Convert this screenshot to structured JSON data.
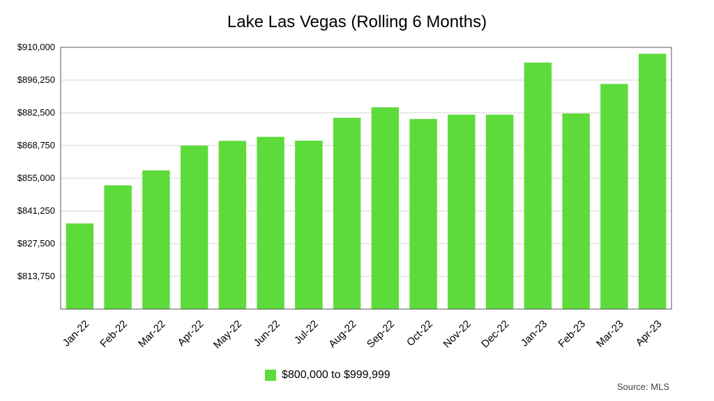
{
  "chart_data": {
    "type": "bar",
    "title": "Lake Las Vegas (Rolling 6 Months)",
    "categories": [
      "Jan-22",
      "Feb-22",
      "Mar-22",
      "Apr-22",
      "May-22",
      "Jun-22",
      "Jul-22",
      "Aug-22",
      "Sep-22",
      "Oct-22",
      "Nov-22",
      "Dec-22",
      "Jan-23",
      "Feb-23",
      "Mar-23",
      "Apr-23"
    ],
    "series": [
      {
        "name": "$800,000 to $999,999",
        "color": "#5ddb3a",
        "values": [
          836000,
          852000,
          858300,
          868700,
          870700,
          872400,
          870800,
          880400,
          884800,
          879900,
          881700,
          881700,
          903600,
          882200,
          894600,
          907300
        ]
      }
    ],
    "ylim": [
      800000,
      910000
    ],
    "yticks": [
      813750,
      827500,
      841250,
      855000,
      868750,
      882500,
      896250,
      910000
    ],
    "ytick_labels": [
      "$813,750",
      "$827,500",
      "$841,250",
      "$855,000",
      "$868,750",
      "$882,500",
      "$896,250",
      "$910,000"
    ],
    "xlabel": "",
    "ylabel": "",
    "grid": true,
    "legend_position": "bottom"
  },
  "source": "Source: MLS"
}
